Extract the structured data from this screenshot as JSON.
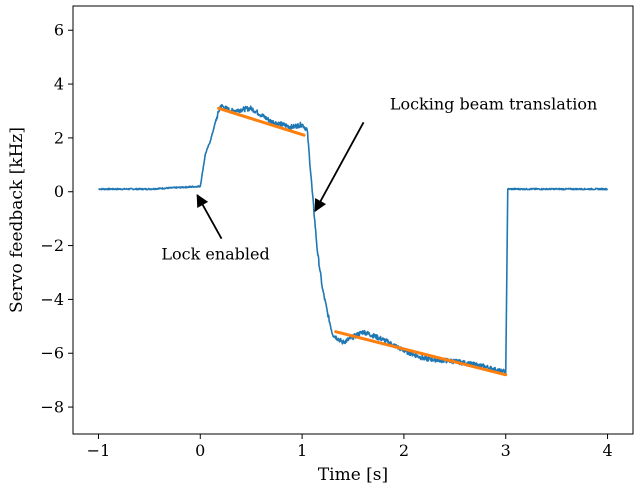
{
  "colors": {
    "signal": "#1f77b4",
    "fit": "#ff7f0e",
    "axis": "#000000",
    "annotation": "#000000"
  },
  "chart_data": {
    "type": "line",
    "title": "",
    "xlabel": "Time [s]",
    "ylabel": "Servo feedback [kHz]",
    "xlim": [
      -1.25,
      4.25
    ],
    "ylim": [
      -9.0,
      6.9
    ],
    "xticks": [
      -1,
      0,
      1,
      2,
      3,
      4
    ],
    "xtick_labels": [
      "−1",
      "0",
      "1",
      "2",
      "3",
      "4"
    ],
    "yticks": [
      -8,
      -6,
      -4,
      -2,
      0,
      2,
      4,
      6
    ],
    "ytick_labels": [
      "−8",
      "−6",
      "−4",
      "−2",
      "0",
      "2",
      "4",
      "6"
    ],
    "grid": false,
    "series": [
      {
        "role": "measurement",
        "x": [
          -1.0,
          -0.5,
          0.0,
          0.05,
          0.1,
          0.15,
          0.2,
          0.3,
          0.5,
          0.7,
          0.9,
          1.0,
          1.05,
          1.1,
          1.15,
          1.2,
          1.25,
          1.3,
          1.4,
          1.6,
          1.8,
          2.0,
          2.2,
          2.5,
          2.8,
          2.97,
          2.98,
          3.0,
          3.02,
          3.5,
          4.0
        ],
        "y": [
          0.1,
          0.1,
          0.2,
          1.4,
          1.9,
          2.6,
          3.2,
          3.0,
          3.1,
          2.6,
          2.4,
          2.5,
          2.3,
          0.0,
          -2.2,
          -3.6,
          -4.5,
          -5.3,
          -5.6,
          -5.2,
          -5.5,
          -5.9,
          -6.2,
          -6.3,
          -6.5,
          -6.7,
          -6.6,
          -6.8,
          0.1,
          0.1,
          0.1
        ]
      },
      {
        "role": "fit",
        "segments": [
          {
            "x": [
              0.18,
              1.02
            ],
            "y": [
              3.1,
              2.1
            ]
          },
          {
            "x": [
              1.33,
              3.0
            ],
            "y": [
              -5.2,
              -6.8
            ]
          }
        ]
      }
    ],
    "annotations": [
      {
        "text": "Lock enabled",
        "x": 0.15,
        "y": -2.3,
        "arrow_to": [
          0.0,
          0.1
        ]
      },
      {
        "text": "Locking beam translation",
        "x": 1.8,
        "y": 2.8,
        "arrow_to": [
          1.05,
          -0.9
        ]
      }
    ]
  }
}
